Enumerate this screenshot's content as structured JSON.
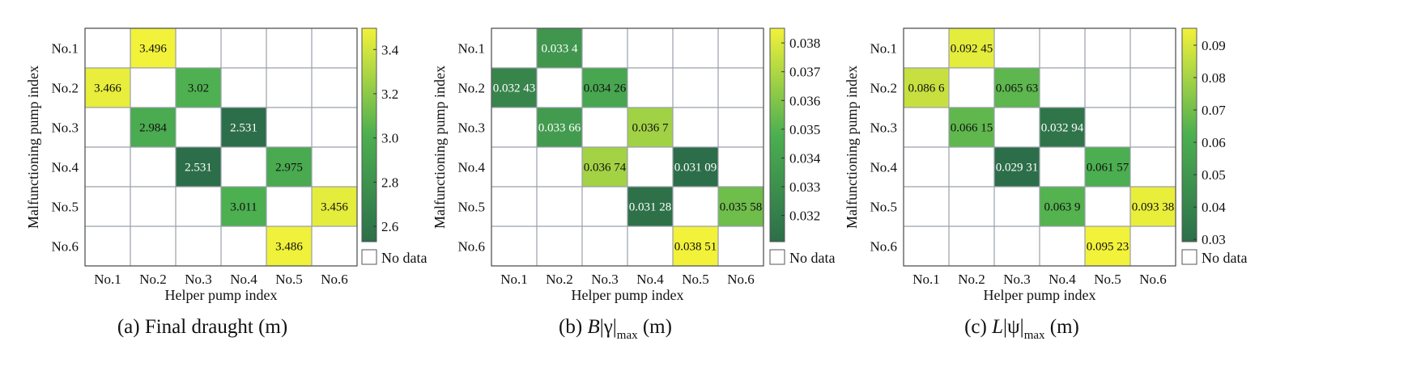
{
  "chart_data": [
    {
      "type": "heatmap",
      "caption": {
        "prefix": "(a) ",
        "main": "Final draught (m)",
        "suffix": "",
        "sub": ""
      },
      "xlabel": "Helper pump index",
      "ylabel": "Malfunctioning pump index",
      "x_categories": [
        "No.1",
        "No.2",
        "No.3",
        "No.4",
        "No.5",
        "No.6"
      ],
      "y_categories": [
        "No.1",
        "No.2",
        "No.3",
        "No.4",
        "No.5",
        "No.6"
      ],
      "cells": [
        {
          "row": 0,
          "col": 1,
          "value": 3.496,
          "label": "3.496"
        },
        {
          "row": 1,
          "col": 0,
          "value": 3.466,
          "label": "3.466"
        },
        {
          "row": 1,
          "col": 2,
          "value": 3.02,
          "label": "3.02"
        },
        {
          "row": 2,
          "col": 1,
          "value": 2.984,
          "label": "2.984"
        },
        {
          "row": 2,
          "col": 3,
          "value": 2.531,
          "label": "2.531"
        },
        {
          "row": 3,
          "col": 2,
          "value": 2.531,
          "label": "2.531"
        },
        {
          "row": 3,
          "col": 4,
          "value": 2.975,
          "label": "2.975"
        },
        {
          "row": 4,
          "col": 3,
          "value": 3.011,
          "label": "3.011"
        },
        {
          "row": 4,
          "col": 5,
          "value": 3.456,
          "label": "3.456"
        },
        {
          "row": 5,
          "col": 4,
          "value": 3.486,
          "label": "3.486"
        }
      ],
      "colorbar": {
        "min": 2.531,
        "max": 3.496,
        "ticks": [
          "2.6",
          "2.8",
          "3.0",
          "3.2",
          "3.4"
        ],
        "tick_values": [
          2.6,
          2.8,
          3.0,
          3.2,
          3.4
        ]
      },
      "nodata_label": "No data"
    },
    {
      "type": "heatmap",
      "caption": {
        "prefix": "(b) ",
        "main": "B",
        "suffix": "|γ|",
        "sub": "max",
        "tail": " (m)"
      },
      "xlabel": "Helper pump index",
      "ylabel": "Malfunctioning pump index",
      "x_categories": [
        "No.1",
        "No.2",
        "No.3",
        "No.4",
        "No.5",
        "No.6"
      ],
      "y_categories": [
        "No.1",
        "No.2",
        "No.3",
        "No.4",
        "No.5",
        "No.6"
      ],
      "cells": [
        {
          "row": 0,
          "col": 1,
          "value": 0.0334,
          "label": "0.033 4"
        },
        {
          "row": 1,
          "col": 0,
          "value": 0.03243,
          "label": "0.032 43"
        },
        {
          "row": 1,
          "col": 2,
          "value": 0.03426,
          "label": "0.034 26"
        },
        {
          "row": 2,
          "col": 1,
          "value": 0.03366,
          "label": "0.033 66"
        },
        {
          "row": 2,
          "col": 3,
          "value": 0.0367,
          "label": "0.036 7"
        },
        {
          "row": 3,
          "col": 2,
          "value": 0.03674,
          "label": "0.036 74"
        },
        {
          "row": 3,
          "col": 4,
          "value": 0.03109,
          "label": "0.031 09"
        },
        {
          "row": 4,
          "col": 3,
          "value": 0.03128,
          "label": "0.031 28"
        },
        {
          "row": 4,
          "col": 5,
          "value": 0.03558,
          "label": "0.035 58"
        },
        {
          "row": 5,
          "col": 4,
          "value": 0.03851,
          "label": "0.038 51"
        }
      ],
      "colorbar": {
        "min": 0.03109,
        "max": 0.03851,
        "ticks": [
          "0.032",
          "0.033",
          "0.034",
          "0.035",
          "0.036",
          "0.037",
          "0.038"
        ],
        "tick_values": [
          0.032,
          0.033,
          0.034,
          0.035,
          0.036,
          0.037,
          0.038
        ]
      },
      "nodata_label": "No data"
    },
    {
      "type": "heatmap",
      "caption": {
        "prefix": "(c) ",
        "main": "L",
        "suffix": "|ψ|",
        "sub": "max",
        "tail": " (m)"
      },
      "xlabel": "Helper pump index",
      "ylabel": "Malfunctioning pump index",
      "x_categories": [
        "No.1",
        "No.2",
        "No.3",
        "No.4",
        "No.5",
        "No.6"
      ],
      "y_categories": [
        "No.1",
        "No.2",
        "No.3",
        "No.4",
        "No.5",
        "No.6"
      ],
      "cells": [
        {
          "row": 0,
          "col": 1,
          "value": 0.09245,
          "label": "0.092 45"
        },
        {
          "row": 1,
          "col": 0,
          "value": 0.0866,
          "label": "0.086 6"
        },
        {
          "row": 1,
          "col": 2,
          "value": 0.06563,
          "label": "0.065 63"
        },
        {
          "row": 2,
          "col": 1,
          "value": 0.06615,
          "label": "0.066 15"
        },
        {
          "row": 2,
          "col": 3,
          "value": 0.03294,
          "label": "0.032 94"
        },
        {
          "row": 3,
          "col": 2,
          "value": 0.02931,
          "label": "0.029 31"
        },
        {
          "row": 3,
          "col": 4,
          "value": 0.06157,
          "label": "0.061 57"
        },
        {
          "row": 4,
          "col": 3,
          "value": 0.0639,
          "label": "0.063 9"
        },
        {
          "row": 4,
          "col": 5,
          "value": 0.09338,
          "label": "0.093 38"
        },
        {
          "row": 5,
          "col": 4,
          "value": 0.09523,
          "label": "0.095 23"
        }
      ],
      "colorbar": {
        "min": 0.02931,
        "max": 0.09523,
        "ticks": [
          "0.03",
          "0.04",
          "0.05",
          "0.06",
          "0.07",
          "0.08",
          "0.09"
        ],
        "tick_values": [
          0.03,
          0.04,
          0.05,
          0.06,
          0.07,
          0.08,
          0.09
        ]
      },
      "nodata_label": "No data"
    }
  ],
  "colors": {
    "low": "#2c6e49",
    "mid": "#4caf50",
    "high": "#f2f23a",
    "grid": "#9aa0aa",
    "border": "#555555"
  }
}
